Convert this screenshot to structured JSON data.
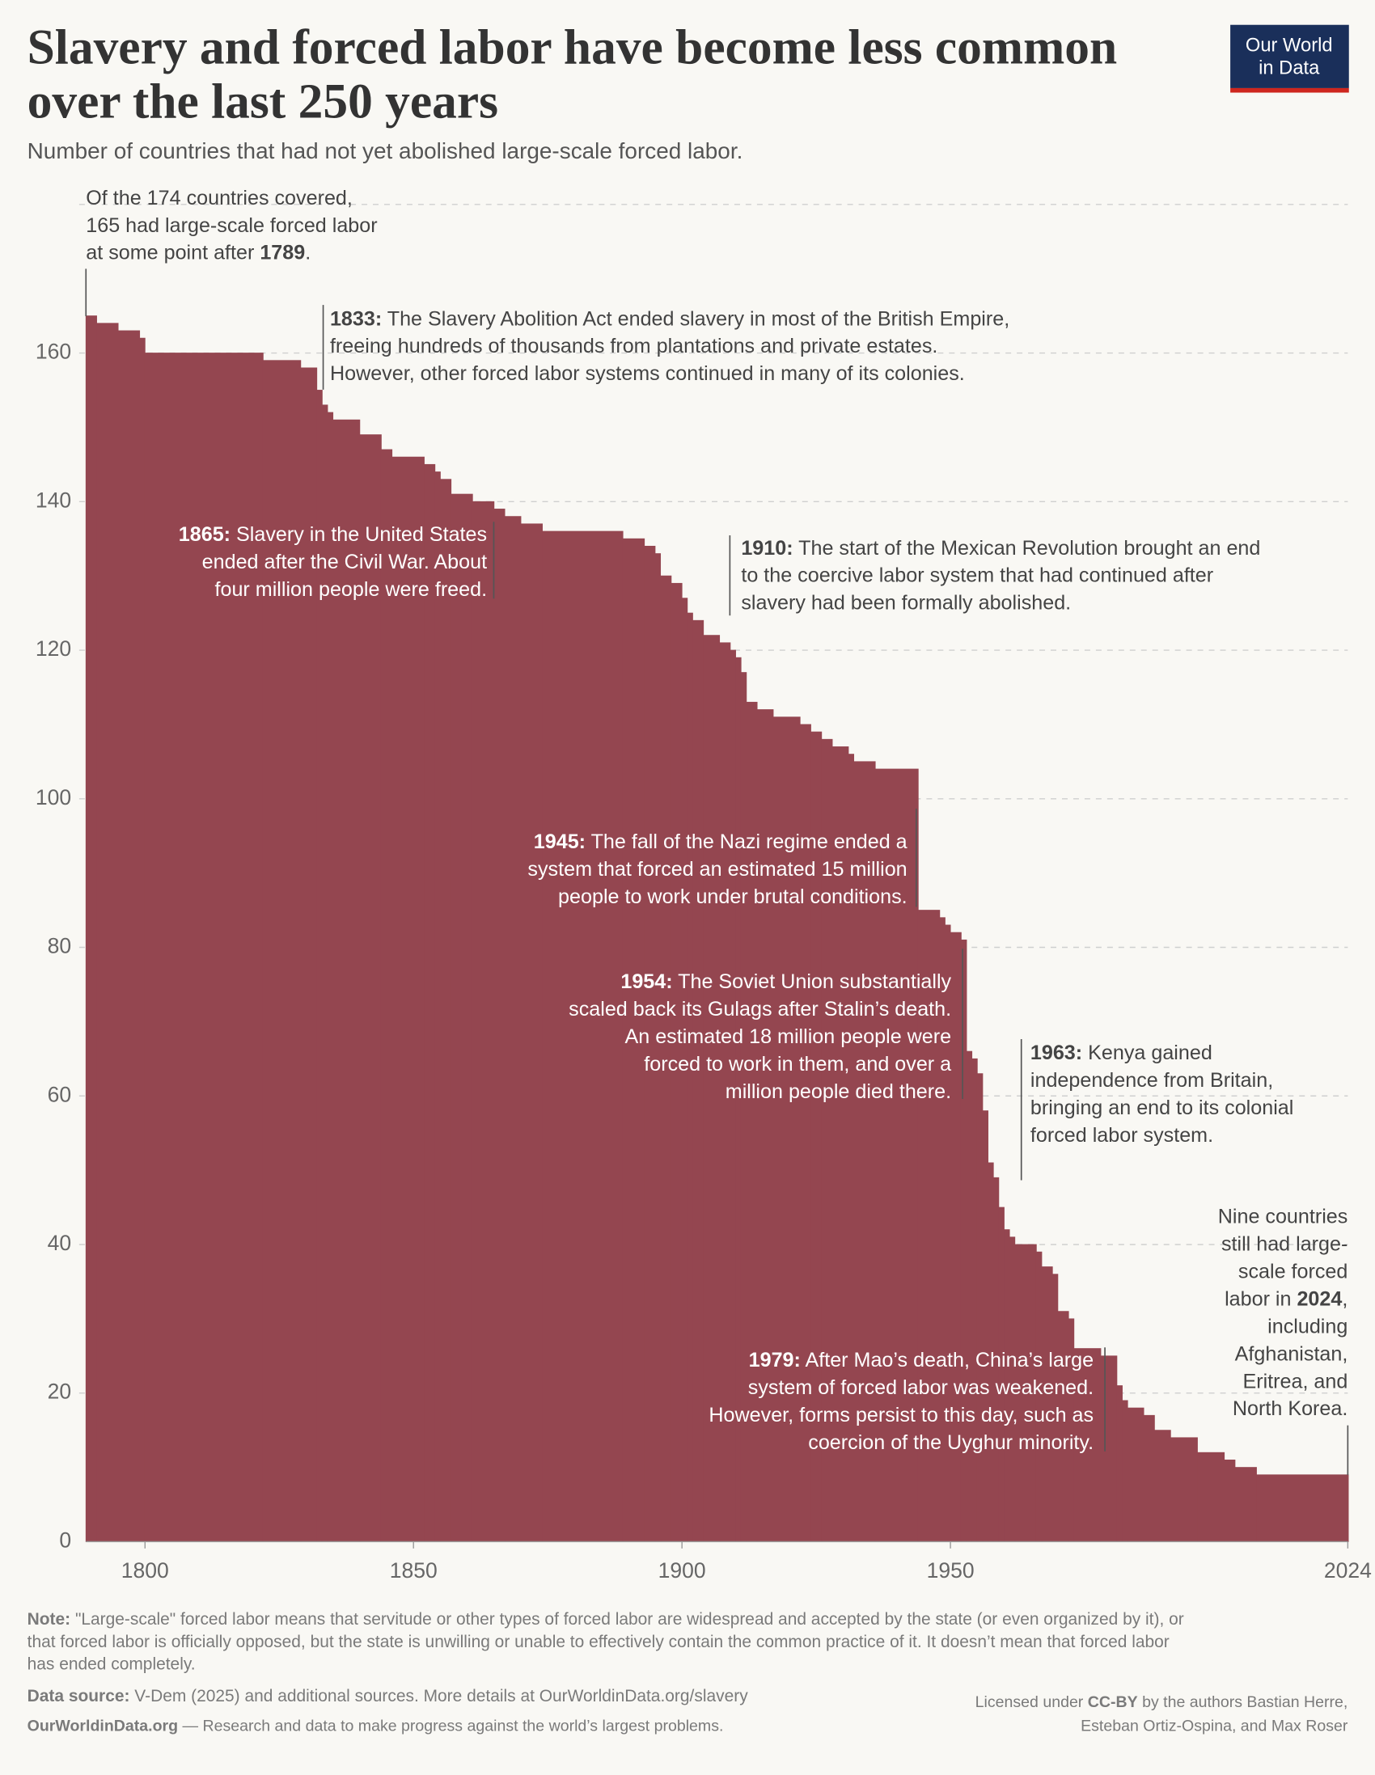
{
  "chart_data": {
    "type": "area",
    "title": [
      "Slavery and forced labor have become less common",
      "over the last 250 years"
    ],
    "subtitle": "Number of countries that had not yet abolished large-scale forced labor.",
    "x": [
      1789,
      1791,
      1795,
      1799,
      1800,
      1822,
      1829,
      1832,
      1833,
      1834,
      1835,
      1840,
      1844,
      1846,
      1852,
      1854,
      1855,
      1857,
      1861,
      1865,
      1867,
      1870,
      1874,
      1889,
      1893,
      1895,
      1896,
      1898,
      1900,
      1901,
      1902,
      1904,
      1907,
      1909,
      1910,
      1911,
      1912,
      1914,
      1917,
      1922,
      1924,
      1926,
      1928,
      1931,
      1932,
      1936,
      1944,
      1948,
      1949,
      1950,
      1952,
      1953,
      1954,
      1955,
      1956,
      1957,
      1958,
      1959,
      1960,
      1961,
      1962,
      1966,
      1967,
      1969,
      1970,
      1972,
      1973,
      1978,
      1981,
      1982,
      1983,
      1986,
      1988,
      1991,
      1996,
      2001,
      2003,
      2007,
      2024
    ],
    "values": [
      165,
      164,
      163,
      162,
      160,
      159,
      158,
      155,
      153,
      152,
      151,
      149,
      147,
      146,
      145,
      144,
      143,
      141,
      140,
      139,
      138,
      137,
      136,
      135,
      134,
      133,
      130,
      129,
      127,
      125,
      124,
      122,
      121,
      120,
      119,
      117,
      113,
      112,
      111,
      110,
      109,
      108,
      107,
      106,
      105,
      104,
      85,
      84,
      83,
      82,
      81,
      66,
      65,
      63,
      58,
      51,
      49,
      45,
      42,
      41,
      40,
      39,
      37,
      36,
      31,
      30,
      26,
      25,
      21,
      19,
      18,
      17,
      15,
      14,
      12,
      11,
      10,
      9,
      9
    ],
    "color": "#944650",
    "xlim": [
      1789,
      2024
    ],
    "xticks": [
      1800,
      1850,
      1900,
      1950,
      2024
    ],
    "ylim": [
      0,
      180
    ],
    "yticks": [
      0,
      20,
      40,
      60,
      80,
      100,
      120,
      140,
      160
    ],
    "grid": true,
    "annotations": [
      {
        "lines": [
          [
            "Of the 174 countries covered,"
          ],
          [
            "165 had large-scale forced labor"
          ],
          [
            "at some point after ",
            {
              "bold": "1789"
            },
            "."
          ]
        ]
      },
      {
        "lines": [
          [
            {
              "bold": "1833:"
            },
            " The Slavery Abolition Act ended slavery in most of the British Empire,"
          ],
          [
            "freeing hundreds of thousands from plantations and private estates."
          ],
          [
            "However, other forced labor systems continued in many of its colonies."
          ]
        ]
      },
      {
        "lines": [
          [
            {
              "bold": "1865:"
            },
            " Slavery in the United States"
          ],
          [
            "ended after the Civil War. About"
          ],
          [
            "four million people were freed."
          ]
        ]
      },
      {
        "lines": [
          [
            {
              "bold": "1910:"
            },
            " The start of the Mexican Revolution brought an end"
          ],
          [
            "to the coercive labor system that had continued after"
          ],
          [
            "slavery had been formally abolished."
          ]
        ]
      },
      {
        "lines": [
          [
            {
              "bold": "1945:"
            },
            " The fall of the Nazi regime ended a"
          ],
          [
            "system that forced an estimated 15 million"
          ],
          [
            "people to work under brutal conditions."
          ]
        ]
      },
      {
        "lines": [
          [
            {
              "bold": "1954:"
            },
            " The Soviet Union substantially"
          ],
          [
            "scaled back its Gulags after Stalin’s death."
          ],
          [
            "An estimated 18 million people were"
          ],
          [
            "forced to work in them, and over a"
          ],
          [
            "million people died there."
          ]
        ]
      },
      {
        "lines": [
          [
            {
              "bold": "1963:"
            },
            " Kenya gained"
          ],
          [
            "independence from Britain,"
          ],
          [
            "bringing an end to its colonial"
          ],
          [
            "forced labor system."
          ]
        ]
      },
      {
        "lines": [
          [
            "Nine countries"
          ],
          [
            "still had large-"
          ],
          [
            "scale forced"
          ],
          [
            "labor in ",
            {
              "bold": "2024"
            },
            ","
          ],
          [
            "including"
          ],
          [
            "Afghanistan,"
          ],
          [
            "Eritrea, and"
          ],
          [
            "North Korea."
          ]
        ]
      },
      {
        "lines": [
          [
            {
              "bold": "1979:"
            },
            " After Mao’s death, China’s large"
          ],
          [
            "system of forced labor was weakened."
          ],
          [
            "However, forms persist to this day, such as"
          ],
          [
            "coercion of the Uyghur minority."
          ]
        ]
      }
    ]
  },
  "logo": [
    "Our World",
    "in Data"
  ],
  "footer": {
    "note": [
      [
        {
          "bold": "Note:"
        },
        " \"Large-scale\" forced labor means that servitude or other types of forced labor are widespread and accepted by the state (or even organized by it), or"
      ],
      [
        "that forced labor is officially opposed, but the state is unwilling or unable to effectively contain the common practice of it. It doesn’t mean that forced labor"
      ],
      [
        "has ended completely."
      ]
    ],
    "source": [
      [
        {
          "bold": "Data source:"
        },
        " V-Dem (2025) and additional sources. More details at OurWorldinData.org/slavery"
      ]
    ],
    "site": [
      [
        {
          "bold": "OurWorldinData.org"
        },
        " — Research and data to make progress against the world’s largest problems."
      ]
    ],
    "license": [
      [
        "Licensed under ",
        {
          "bold": "CC-BY"
        },
        " by the authors Bastian Herre,"
      ],
      [
        "Esteban Ortiz-Ospina, and Max Roser"
      ]
    ]
  }
}
